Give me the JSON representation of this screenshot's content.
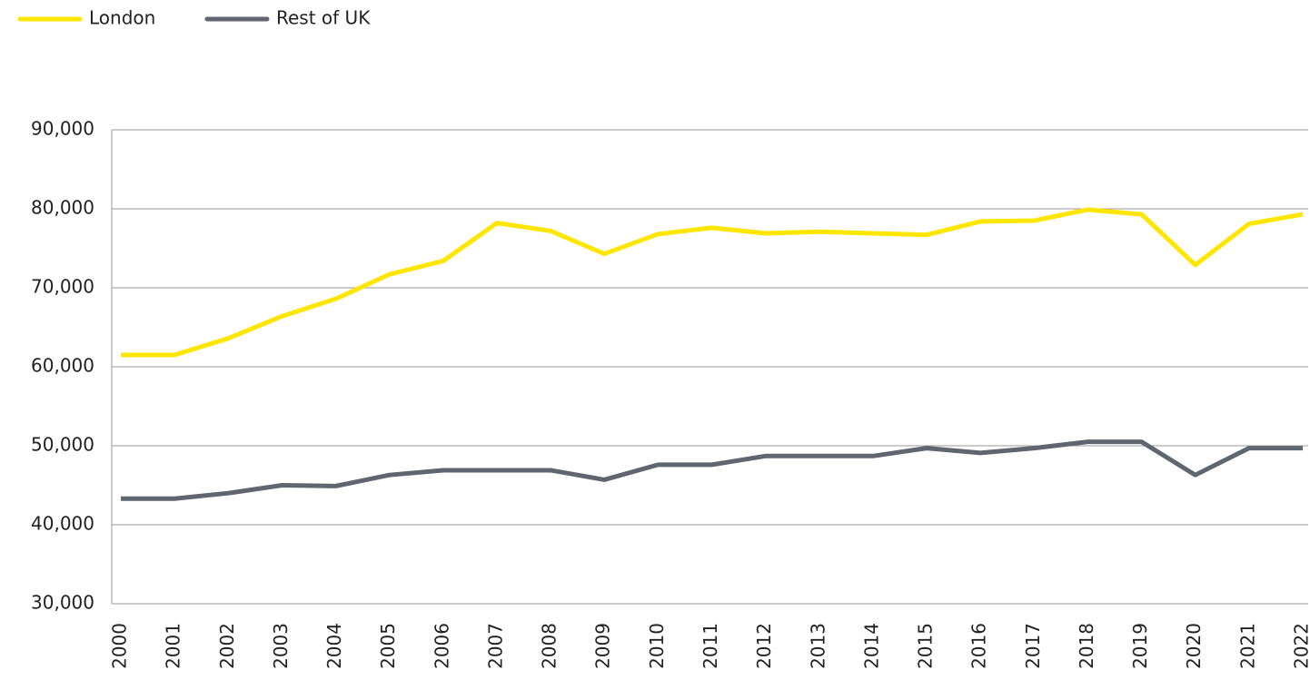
{
  "chart_data": {
    "type": "line",
    "categories": [
      "2000",
      "2001",
      "2002",
      "2003",
      "2004",
      "2005",
      "2006",
      "2007",
      "2008",
      "2009",
      "2010",
      "2011",
      "2012",
      "2013",
      "2014",
      "2015",
      "2016",
      "2017",
      "2018",
      "2019",
      "2020",
      "2021",
      "2022"
    ],
    "series": [
      {
        "name": "London",
        "color": "#ffe600",
        "values": [
          61500,
          61500,
          63600,
          66400,
          68600,
          71700,
          73400,
          78200,
          77200,
          74300,
          76800,
          77600,
          76900,
          77100,
          76900,
          76700,
          78400,
          78500,
          79900,
          79300,
          72900,
          78100,
          79300
        ]
      },
      {
        "name": "Rest of UK",
        "color": "#5f6670",
        "values": [
          43300,
          43300,
          44000,
          45000,
          44900,
          46300,
          46900,
          46900,
          46900,
          45700,
          47600,
          47600,
          48700,
          48700,
          48700,
          49700,
          49100,
          49700,
          50500,
          50500,
          46300,
          49700,
          49700
        ]
      }
    ],
    "ylim": [
      30000,
      90000
    ],
    "yticks": [
      {
        "value": 30000,
        "label": "30,000"
      },
      {
        "value": 40000,
        "label": "40,000"
      },
      {
        "value": 50000,
        "label": "50,000"
      },
      {
        "value": 60000,
        "label": "60,000"
      },
      {
        "value": 70000,
        "label": "70,000"
      },
      {
        "value": 80000,
        "label": "80,000"
      },
      {
        "value": 90000,
        "label": "90,000"
      }
    ],
    "grid": true,
    "legend": "top-left"
  }
}
